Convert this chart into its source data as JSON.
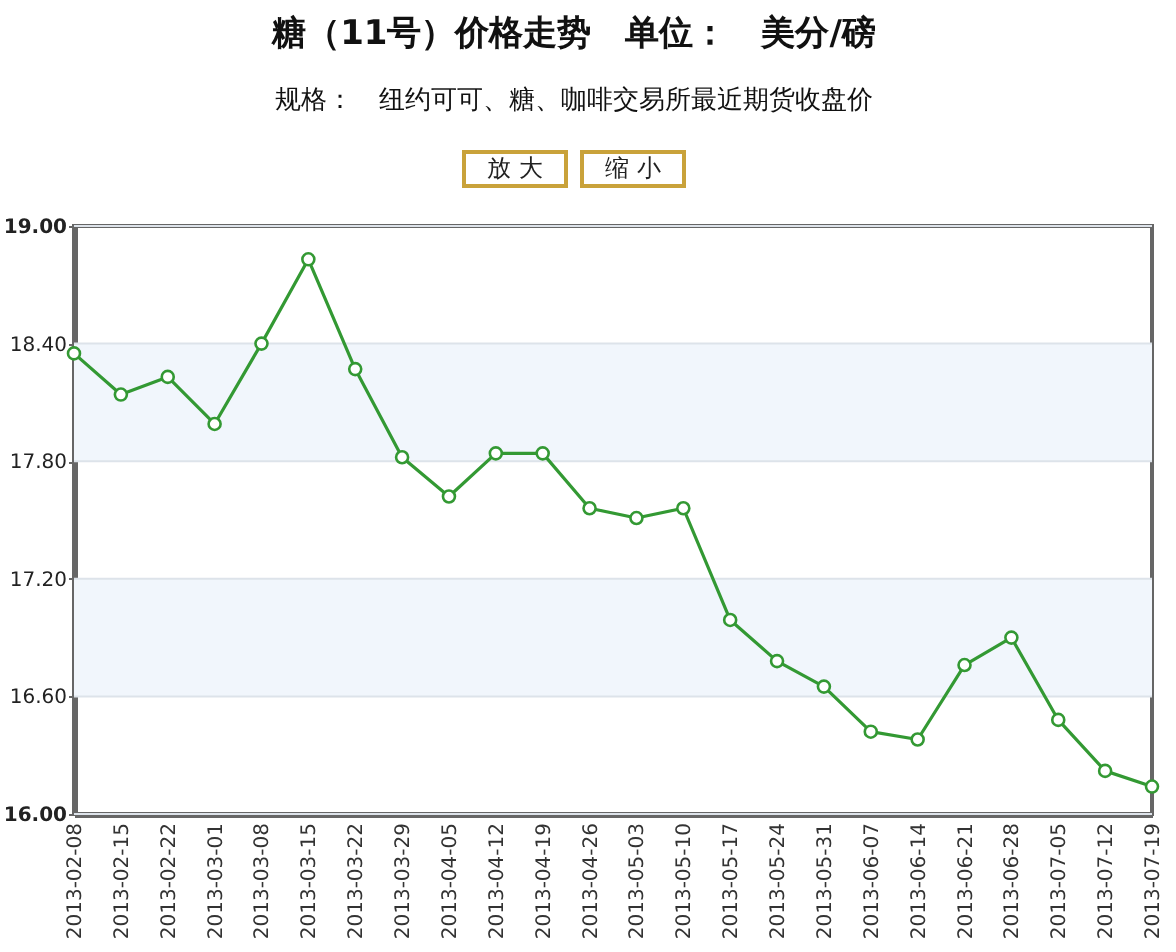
{
  "chart_data": {
    "type": "line",
    "title": "糖（11号）价格走势　单位：　美分/磅",
    "subtitle": "规格：　纽约可可、糖、咖啡交易所最近期货收盘价",
    "annotations": [
      "放 大",
      "缩 小"
    ],
    "categories": [
      "2013-02-08",
      "2013-02-15",
      "2013-02-22",
      "2013-03-01",
      "2013-03-08",
      "2013-03-15",
      "2013-03-22",
      "2013-03-29",
      "2013-04-05",
      "2013-04-12",
      "2013-04-19",
      "2013-04-26",
      "2013-05-03",
      "2013-05-10",
      "2013-05-17",
      "2013-05-24",
      "2013-05-31",
      "2013-06-07",
      "2013-06-14",
      "2013-06-21",
      "2013-06-28",
      "2013-07-05",
      "2013-07-12",
      "2013-07-19"
    ],
    "series": [
      {
        "color": "#339933",
        "values": [
          18.35,
          18.14,
          18.23,
          17.99,
          18.4,
          18.83,
          18.27,
          17.82,
          17.62,
          17.84,
          17.84,
          17.56,
          17.51,
          17.56,
          16.99,
          16.78,
          16.65,
          16.42,
          16.38,
          16.76,
          16.9,
          16.48,
          16.22,
          16.14
        ]
      }
    ],
    "ylim": [
      16,
      19
    ],
    "yticks": [
      {
        "value": 16,
        "label": "16.00"
      },
      {
        "value": 16.6,
        "label": "16.60"
      },
      {
        "value": 17.2,
        "label": "17.20"
      },
      {
        "value": 17.8,
        "label": "17.80"
      },
      {
        "value": 18.4,
        "label": "18.40"
      },
      {
        "value": 19,
        "label": "19.00"
      }
    ],
    "grid": "y",
    "bands": [
      {
        "axis": "y",
        "from": 17.8,
        "to": 18.4,
        "color": "#f1f6fc"
      },
      {
        "axis": "y",
        "from": 16.6,
        "to": 17.2,
        "color": "#f1f6fc"
      }
    ],
    "marker": "circle",
    "line_style": "solid"
  }
}
